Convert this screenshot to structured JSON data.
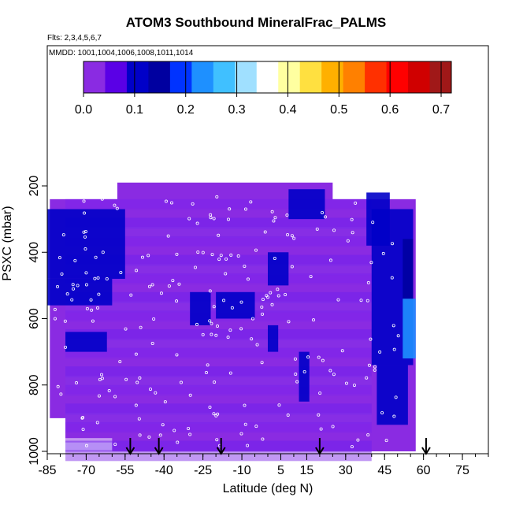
{
  "title": "ATOM3 Southbound MineralFrac_PALMS",
  "flights_text": "Flts: 2,3,4,5,6,7",
  "dates_text": "MMDD: 1001,1004,1006,1008,1011,1014",
  "colorbar": {
    "colors": [
      "#8a2be2",
      "#5a00e6",
      "#0000c8",
      "#0000a0",
      "#0033ff",
      "#1e90ff",
      "#40c0ff",
      "#a0e0ff",
      "#ffffff",
      "#ffffa0",
      "#ffe040",
      "#ffb000",
      "#ff8000",
      "#ff3000",
      "#ff0000",
      "#d00000",
      "#a01818"
    ],
    "tick_labels": [
      "0.0",
      "0.1",
      "0.2",
      "0.3",
      "0.4",
      "0.5",
      "0.6",
      "0.7"
    ],
    "tick_values": [
      0.0,
      0.1,
      0.2,
      0.3,
      0.4,
      0.5,
      0.6,
      0.7
    ],
    "range": [
      0.0,
      0.72
    ]
  },
  "chart_data": {
    "type": "heatmap",
    "title": "ATOM3 Southbound MineralFrac_PALMS",
    "xlabel": "Latitude (deg N)",
    "ylabel": "PSXC (mbar)",
    "xlim": [
      -85,
      85
    ],
    "ylim": [
      1000,
      0
    ],
    "x_ticks": [
      -85,
      -70,
      -55,
      -40,
      -25,
      -10,
      5,
      15,
      30,
      45,
      60,
      75
    ],
    "x_tick_labels": [
      "-85",
      "-70",
      "-55",
      "-40",
      "-25",
      "-10",
      "5",
      "15",
      "30",
      "45",
      "60",
      "75"
    ],
    "y_ticks": [
      200,
      400,
      600,
      800,
      1000
    ],
    "y_tick_labels": [
      "200",
      "400",
      "600",
      "800",
      "1000"
    ],
    "value_range": [
      0.0,
      0.72
    ],
    "profile_markers_lat": [
      -53,
      -42,
      -18,
      20,
      61
    ],
    "regions": [
      {
        "lat": [
          -86,
          57
        ],
        "p": [
          170,
          1000
        ],
        "value": 0.02
      },
      {
        "lat": [
          -85,
          -55
        ],
        "p": [
          270,
          480
        ],
        "value": 0.1
      },
      {
        "lat": [
          -85,
          -60
        ],
        "p": [
          480,
          560
        ],
        "value": 0.12
      },
      {
        "lat": [
          -78,
          -62
        ],
        "p": [
          640,
          700
        ],
        "value": 0.1
      },
      {
        "lat": [
          -30,
          -22
        ],
        "p": [
          520,
          620
        ],
        "value": 0.1
      },
      {
        "lat": [
          -20,
          -5
        ],
        "p": [
          520,
          600
        ],
        "value": 0.09
      },
      {
        "lat": [
          0,
          8
        ],
        "p": [
          400,
          500
        ],
        "value": 0.1
      },
      {
        "lat": [
          0,
          4
        ],
        "p": [
          620,
          700
        ],
        "value": 0.1
      },
      {
        "lat": [
          8,
          22
        ],
        "p": [
          210,
          300
        ],
        "value": 0.1
      },
      {
        "lat": [
          12,
          16
        ],
        "p": [
          700,
          850
        ],
        "value": 0.09
      },
      {
        "lat": [
          38,
          47
        ],
        "p": [
          220,
          380
        ],
        "value": 0.11
      },
      {
        "lat": [
          40,
          56
        ],
        "p": [
          270,
          740
        ],
        "value": 0.12
      },
      {
        "lat": [
          42,
          54
        ],
        "p": [
          740,
          920
        ],
        "value": 0.1
      },
      {
        "lat": [
          52,
          56
        ],
        "p": [
          360,
          540
        ],
        "value": 0.16
      },
      {
        "lat": [
          52,
          57
        ],
        "p": [
          540,
          720
        ],
        "value": 0.22
      }
    ]
  },
  "title_font_size": 17
}
